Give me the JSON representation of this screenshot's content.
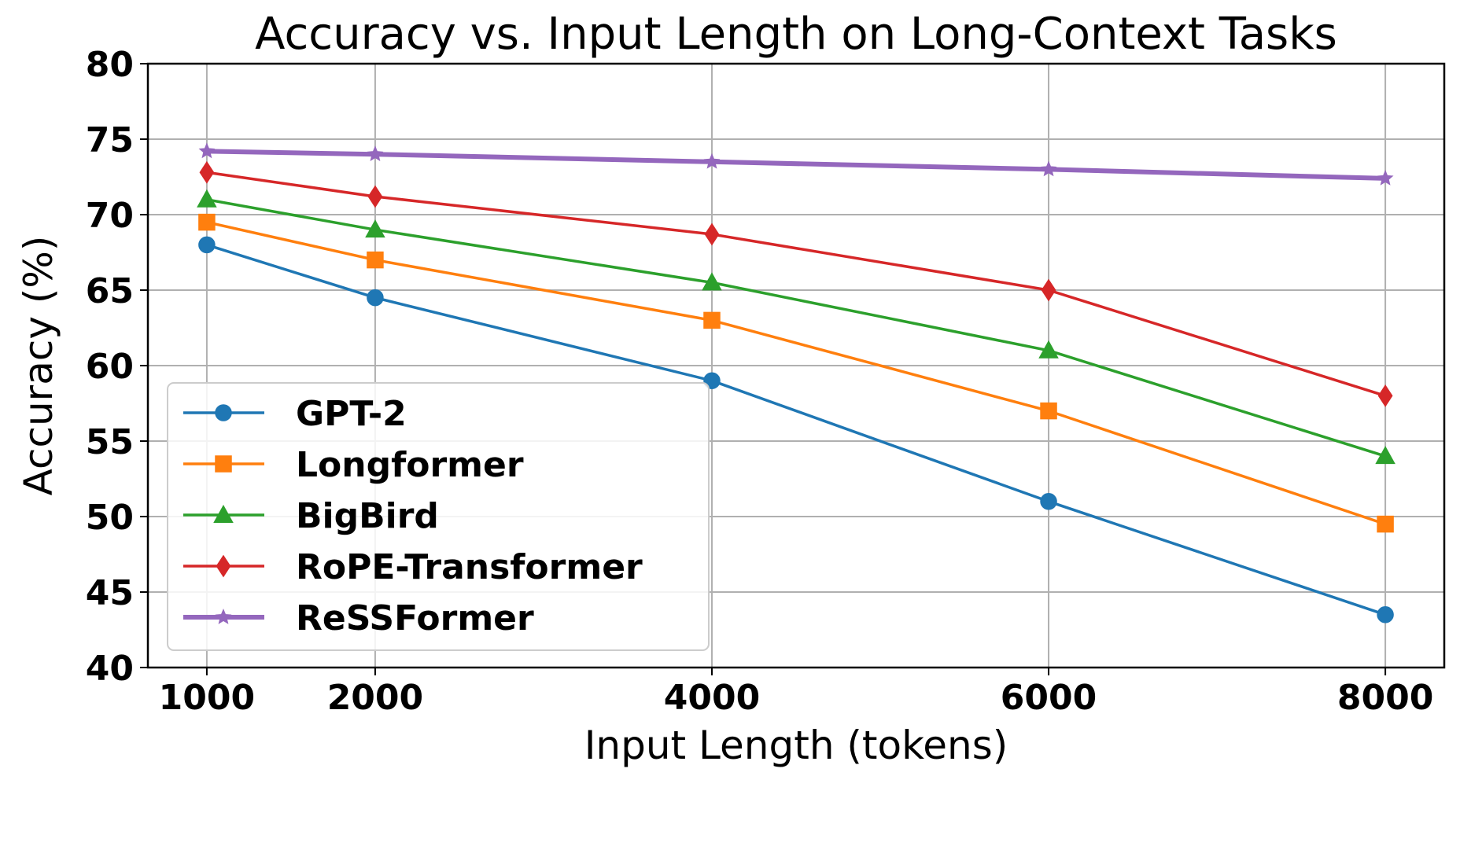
{
  "chart_data": {
    "type": "line",
    "title": "Accuracy vs. Input Length on Long-Context Tasks",
    "xlabel": "Input Length (tokens)",
    "ylabel": "Accuracy (%)",
    "x": [
      1000,
      2000,
      4000,
      6000,
      8000
    ],
    "x_tick_labels": [
      "1000",
      "2000",
      "4000",
      "6000",
      "8000"
    ],
    "xlim": [
      650,
      8350
    ],
    "ylim": [
      40,
      80
    ],
    "y_ticks": [
      40,
      45,
      50,
      55,
      60,
      65,
      70,
      75,
      80
    ],
    "y_tick_labels": [
      "40",
      "45",
      "50",
      "55",
      "60",
      "65",
      "70",
      "75",
      "80"
    ],
    "grid": true,
    "legend_position": "lower-left",
    "series": [
      {
        "name": "GPT-2",
        "color": "#1f77b4",
        "marker": "circle",
        "values": [
          68,
          64.5,
          59,
          51,
          43.5
        ]
      },
      {
        "name": "Longformer",
        "color": "#ff7f0e",
        "marker": "square",
        "values": [
          69.5,
          67,
          63,
          57,
          49.5
        ]
      },
      {
        "name": "BigBird",
        "color": "#2ca02c",
        "marker": "triangle",
        "values": [
          71,
          69,
          65.5,
          61,
          54
        ]
      },
      {
        "name": "RoPE-Transformer",
        "color": "#d62728",
        "marker": "diamond",
        "values": [
          72.8,
          71.2,
          68.7,
          65,
          58
        ]
      },
      {
        "name": "ReSSFormer",
        "color": "#9467bd",
        "marker": "star",
        "values": [
          74.2,
          74,
          73.5,
          73,
          72.4
        ]
      }
    ]
  }
}
